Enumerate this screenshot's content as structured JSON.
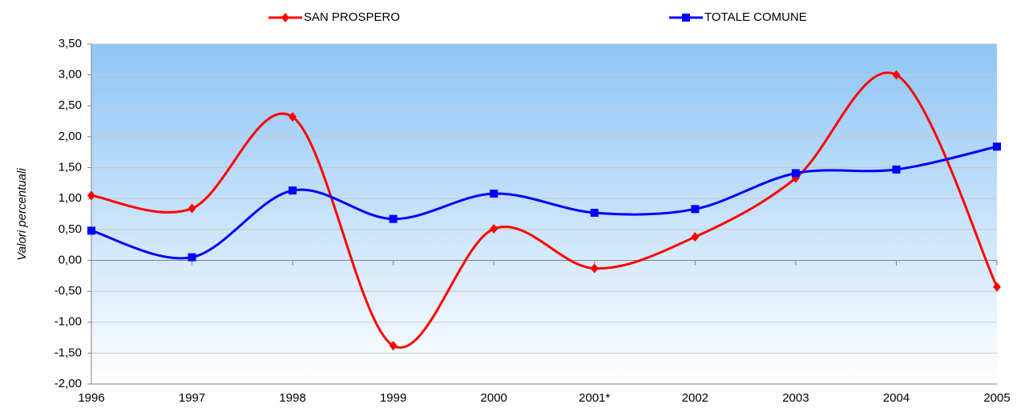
{
  "chart_data": {
    "type": "line",
    "y_label": "Valori percentuali",
    "categories": [
      "1996",
      "1997",
      "1998",
      "1999",
      "2000",
      "2001*",
      "2002",
      "2003",
      "2004",
      "2005"
    ],
    "series": [
      {
        "name": "SAN PROSPERO",
        "color": "#ff0000",
        "marker": "diamond",
        "values": [
          1.05,
          0.84,
          2.32,
          -1.38,
          0.51,
          -0.13,
          0.38,
          1.33,
          3.0,
          -0.43
        ]
      },
      {
        "name": "TOTALE COMUNE",
        "color": "#0000ff",
        "marker": "square",
        "values": [
          0.48,
          0.05,
          1.13,
          0.67,
          1.08,
          0.77,
          0.83,
          1.41,
          1.47,
          1.84
        ]
      }
    ],
    "ylim": [
      -2,
      3.5
    ],
    "yticks": [
      {
        "value": 3.5,
        "label": "3,50"
      },
      {
        "value": 3,
        "label": "3,00"
      },
      {
        "value": 2.5,
        "label": "2,50"
      },
      {
        "value": 2,
        "label": "2,00"
      },
      {
        "value": 1.5,
        "label": "1,50"
      },
      {
        "value": 1,
        "label": "1,00"
      },
      {
        "value": 0.5,
        "label": "0,50"
      },
      {
        "value": 0,
        "label": "0,00"
      },
      {
        "value": -0.5,
        "label": "-0,50"
      },
      {
        "value": -1,
        "label": "-1,00"
      },
      {
        "value": -1.5,
        "label": "-1,50"
      },
      {
        "value": -2,
        "label": "-2,00"
      }
    ],
    "grid": true,
    "smooth": true,
    "legend": "top"
  }
}
